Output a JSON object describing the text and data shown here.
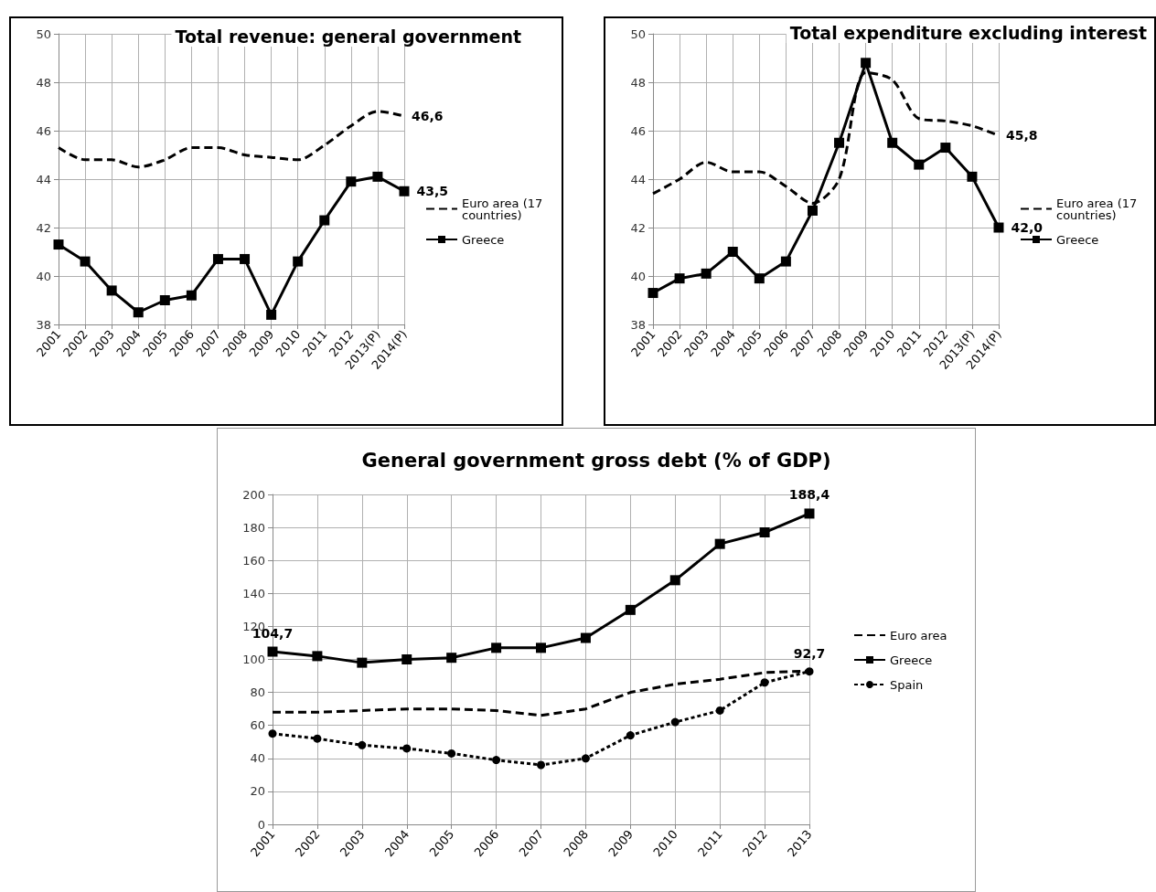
{
  "chart_data": [
    {
      "type": "line",
      "title": "Total revenue: general government",
      "categories": [
        "2001",
        "2002",
        "2003",
        "2004",
        "2005",
        "2006",
        "2007",
        "2008",
        "2009",
        "2010",
        "2011",
        "2012",
        "2013(P)",
        "2014(P)"
      ],
      "ylim": [
        38,
        50
      ],
      "yticks": [
        38,
        40,
        42,
        44,
        46,
        48,
        50
      ],
      "grid": true,
      "legend": "right",
      "series": [
        {
          "name": "Euro area (17 countries)",
          "color": "#000000",
          "line_style": "dashed",
          "marker": "none",
          "values": [
            45.3,
            44.8,
            44.8,
            44.5,
            44.8,
            45.3,
            45.3,
            45.0,
            44.9,
            44.8,
            45.4,
            46.2,
            46.8,
            46.6
          ],
          "value_labels": [
            null,
            null,
            null,
            null,
            null,
            null,
            null,
            null,
            null,
            null,
            null,
            null,
            null,
            "46,6"
          ]
        },
        {
          "name": "Greece",
          "color": "#000000",
          "line_style": "solid",
          "marker": "square",
          "values": [
            41.3,
            40.6,
            39.4,
            38.5,
            39.0,
            39.2,
            40.7,
            40.7,
            38.4,
            40.6,
            42.3,
            43.9,
            44.1,
            43.5
          ],
          "value_labels": [
            null,
            null,
            null,
            null,
            null,
            null,
            null,
            null,
            null,
            null,
            null,
            null,
            null,
            "43,5"
          ]
        }
      ]
    },
    {
      "type": "line",
      "title": "Total expenditure excluding interest",
      "categories": [
        "2001",
        "2002",
        "2003",
        "2004",
        "2005",
        "2006",
        "2007",
        "2008",
        "2009",
        "2010",
        "2011",
        "2012",
        "2013(P)",
        "2014(P)"
      ],
      "ylim": [
        38,
        50
      ],
      "yticks": [
        38,
        40,
        42,
        44,
        46,
        48,
        50
      ],
      "grid": true,
      "legend": "right",
      "series": [
        {
          "name": "Euro area (17 countries)",
          "color": "#000000",
          "line_style": "dashed",
          "marker": "none",
          "values": [
            43.4,
            44.0,
            44.7,
            44.3,
            44.3,
            43.7,
            43.0,
            44.0,
            48.4,
            48.1,
            46.5,
            46.4,
            46.2,
            45.8
          ],
          "value_labels": [
            null,
            null,
            null,
            null,
            null,
            null,
            null,
            null,
            null,
            null,
            null,
            null,
            null,
            "45,8"
          ]
        },
        {
          "name": "Greece",
          "color": "#000000",
          "line_style": "solid",
          "marker": "square",
          "values": [
            39.3,
            39.9,
            40.1,
            41.0,
            39.9,
            40.6,
            42.7,
            45.5,
            48.8,
            45.5,
            44.6,
            45.3,
            44.1,
            42.0
          ],
          "value_labels": [
            null,
            null,
            null,
            null,
            null,
            null,
            null,
            null,
            null,
            null,
            null,
            null,
            null,
            "42,0"
          ]
        }
      ]
    },
    {
      "type": "line",
      "title": "General government gross debt (% of GDP)",
      "categories": [
        "2001",
        "2002",
        "2003",
        "2004",
        "2005",
        "2006",
        "2007",
        "2008",
        "2009",
        "2010",
        "2011",
        "2012",
        "2013"
      ],
      "ylim": [
        0,
        200
      ],
      "yticks": [
        0,
        20,
        40,
        60,
        80,
        100,
        120,
        140,
        160,
        180,
        200
      ],
      "grid": true,
      "legend": "right",
      "series": [
        {
          "name": "Euro area",
          "color": "#000000",
          "line_style": "dashed",
          "marker": "none",
          "values": [
            68,
            68,
            69,
            70,
            70,
            69,
            66,
            70,
            80,
            85,
            88,
            92,
            93
          ]
        },
        {
          "name": "Greece",
          "color": "#000000",
          "line_style": "solid",
          "marker": "square",
          "values": [
            104.7,
            102,
            98,
            100,
            101,
            107,
            107,
            113,
            130,
            148,
            170,
            177,
            188.4
          ],
          "value_labels": [
            "104,7",
            null,
            null,
            null,
            null,
            null,
            null,
            null,
            null,
            null,
            null,
            null,
            "188,4"
          ]
        },
        {
          "name": "Spain",
          "color": "#000000",
          "line_style": "dotted",
          "marker": "circle",
          "values": [
            55,
            52,
            48,
            46,
            43,
            39,
            36,
            40,
            54,
            62,
            69,
            86,
            92.7
          ],
          "value_labels": [
            null,
            null,
            null,
            null,
            null,
            null,
            null,
            null,
            null,
            null,
            null,
            null,
            "92,7"
          ]
        }
      ]
    }
  ]
}
